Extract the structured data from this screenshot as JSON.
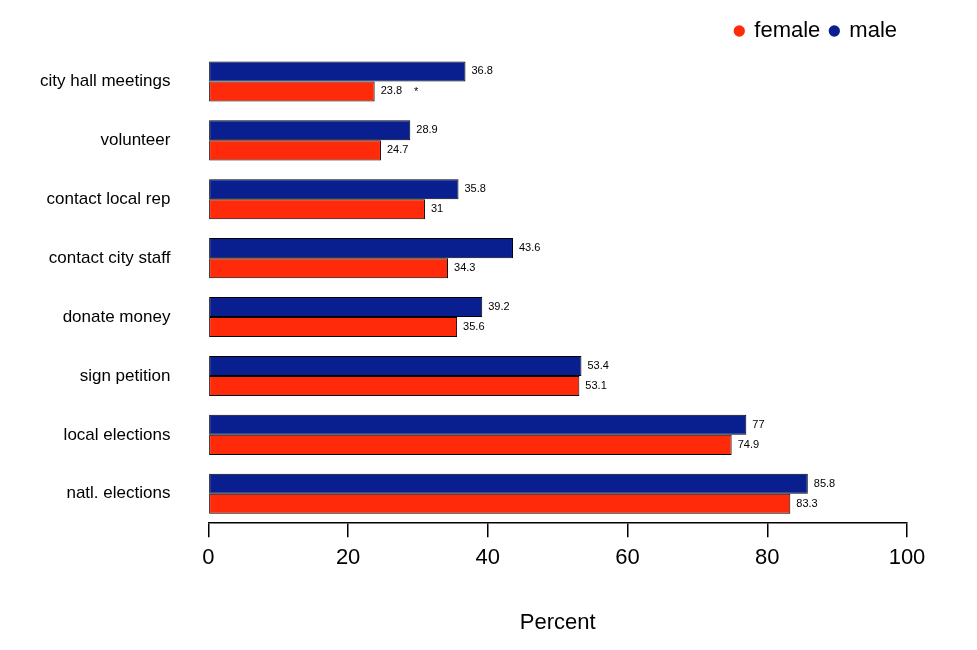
{
  "chart_data": {
    "type": "bar",
    "orientation": "horizontal",
    "x_label": "Percent",
    "categories": [
      "city hall meetings",
      "volunteer",
      "contact local rep",
      "contact city staff",
      "donate money",
      "sign petition",
      "local elections",
      "natl. elections"
    ],
    "series": [
      {
        "name": "male",
        "color": "#0a1f8f",
        "values": [
          36.8,
          28.9,
          35.8,
          43.6,
          39.2,
          53.4,
          77,
          85.8
        ]
      },
      {
        "name": "female",
        "color": "#ff2a0a",
        "values": [
          23.8,
          24.7,
          31,
          34.3,
          35.6,
          53.1,
          74.9,
          83.3
        ]
      }
    ],
    "xlim": [
      0,
      100
    ],
    "xticks": [
      0,
      20,
      40,
      60,
      80,
      100
    ],
    "grid": false,
    "legend": "top-right",
    "data_labels": true,
    "annotations": [
      {
        "text": "*",
        "category": "city hall meetings",
        "series": "female"
      }
    ]
  }
}
